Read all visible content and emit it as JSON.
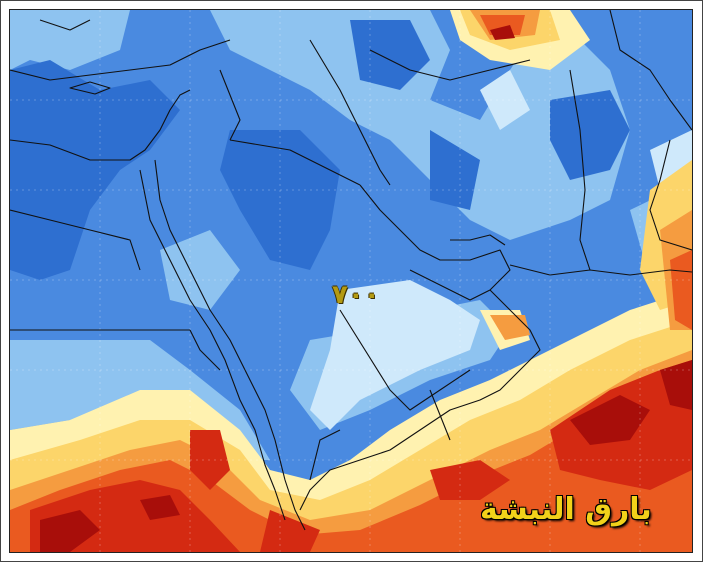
{
  "map": {
    "level_label": "٧٠٠",
    "watermark": "بارق النبشة",
    "palette": {
      "dark_blue": "#2e6fd0",
      "mid_blue": "#4a8ae0",
      "light_blue": "#8ec3f0",
      "pale_blue": "#cfe9fb",
      "cream": "#fff2b0",
      "yellow": "#fcd56a",
      "orange": "#f59c40",
      "red_orange": "#ea5a20",
      "red": "#d42a12",
      "dark_red": "#a80e0a"
    }
  }
}
